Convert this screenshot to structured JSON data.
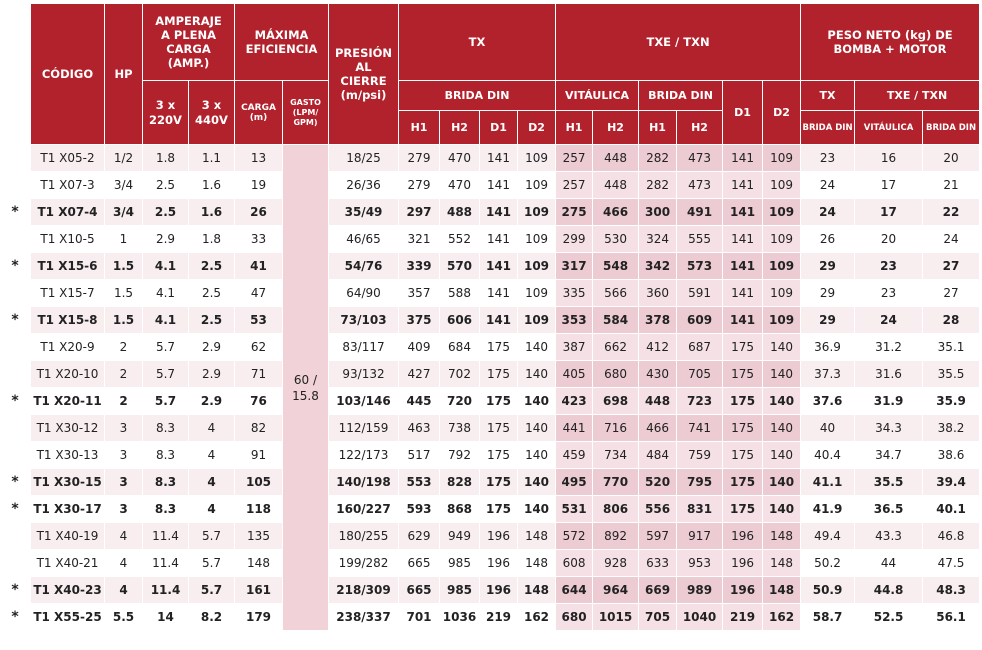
{
  "headers": {
    "codigo": "CÓDIGO",
    "hp": "HP",
    "amperaje": "AMPERAJE A PLENA CARGA (AMP.)",
    "amp_220": "3 x 220V",
    "amp_440": "3 x 440V",
    "maxima": "MÁXIMA EFICIENCIA",
    "carga": "CARGA (m)",
    "gasto": "GASTO (LPM/ GPM)",
    "presion": "PRESIÓN AL CIERRE (m/psi)",
    "tx": "TX",
    "tx_brida": "BRIDA DIN",
    "txe_txn": "TXE / TXN",
    "vitaulica": "VITÁULICA",
    "brida_din": "BRIDA DIN",
    "h1": "H1",
    "h2": "H2",
    "d1": "D1",
    "d2": "D2",
    "peso": "PESO NETO (kg) DE BOMBA + MOTOR",
    "peso_tx": "TX",
    "peso_txe": "TXE / TXN",
    "peso_brida_tx": "BRIDA DIN",
    "peso_vit": "VITÁULICA",
    "peso_brida_txe": "BRIDA DIN"
  },
  "gasto_merged": "60 / 15.8",
  "star_symbol": "*",
  "rows": [
    {
      "star": false,
      "codigo": "T1 X05-2",
      "hp": "1/2",
      "a220": "1.8",
      "a440": "1.1",
      "carga": "13",
      "presion": "18/25",
      "tx_h1": "279",
      "tx_h2": "470",
      "tx_d1": "141",
      "tx_d2": "109",
      "v_h1": "257",
      "v_h2": "448",
      "b_h1": "282",
      "b_h2": "473",
      "d1": "141",
      "d2": "109",
      "p_tx": "23",
      "p_vit": "16",
      "p_brida": "20"
    },
    {
      "star": false,
      "codigo": "T1 X07-3",
      "hp": "3/4",
      "a220": "2.5",
      "a440": "1.6",
      "carga": "19",
      "presion": "26/36",
      "tx_h1": "279",
      "tx_h2": "470",
      "tx_d1": "141",
      "tx_d2": "109",
      "v_h1": "257",
      "v_h2": "448",
      "b_h1": "282",
      "b_h2": "473",
      "d1": "141",
      "d2": "109",
      "p_tx": "24",
      "p_vit": "17",
      "p_brida": "21"
    },
    {
      "star": true,
      "codigo": "T1 X07-4",
      "hp": "3/4",
      "a220": "2.5",
      "a440": "1.6",
      "carga": "26",
      "presion": "35/49",
      "tx_h1": "297",
      "tx_h2": "488",
      "tx_d1": "141",
      "tx_d2": "109",
      "v_h1": "275",
      "v_h2": "466",
      "b_h1": "300",
      "b_h2": "491",
      "d1": "141",
      "d2": "109",
      "p_tx": "24",
      "p_vit": "17",
      "p_brida": "22"
    },
    {
      "star": false,
      "codigo": "T1 X10-5",
      "hp": "1",
      "a220": "2.9",
      "a440": "1.8",
      "carga": "33",
      "presion": "46/65",
      "tx_h1": "321",
      "tx_h2": "552",
      "tx_d1": "141",
      "tx_d2": "109",
      "v_h1": "299",
      "v_h2": "530",
      "b_h1": "324",
      "b_h2": "555",
      "d1": "141",
      "d2": "109",
      "p_tx": "26",
      "p_vit": "20",
      "p_brida": "24"
    },
    {
      "star": true,
      "codigo": "T1 X15-6",
      "hp": "1.5",
      "a220": "4.1",
      "a440": "2.5",
      "carga": "41",
      "presion": "54/76",
      "tx_h1": "339",
      "tx_h2": "570",
      "tx_d1": "141",
      "tx_d2": "109",
      "v_h1": "317",
      "v_h2": "548",
      "b_h1": "342",
      "b_h2": "573",
      "d1": "141",
      "d2": "109",
      "p_tx": "29",
      "p_vit": "23",
      "p_brida": "27"
    },
    {
      "star": false,
      "codigo": "T1 X15-7",
      "hp": "1.5",
      "a220": "4.1",
      "a440": "2.5",
      "carga": "47",
      "presion": "64/90",
      "tx_h1": "357",
      "tx_h2": "588",
      "tx_d1": "141",
      "tx_d2": "109",
      "v_h1": "335",
      "v_h2": "566",
      "b_h1": "360",
      "b_h2": "591",
      "d1": "141",
      "d2": "109",
      "p_tx": "29",
      "p_vit": "23",
      "p_brida": "27"
    },
    {
      "star": true,
      "codigo": "T1 X15-8",
      "hp": "1.5",
      "a220": "4.1",
      "a440": "2.5",
      "carga": "53",
      "presion": "73/103",
      "tx_h1": "375",
      "tx_h2": "606",
      "tx_d1": "141",
      "tx_d2": "109",
      "v_h1": "353",
      "v_h2": "584",
      "b_h1": "378",
      "b_h2": "609",
      "d1": "141",
      "d2": "109",
      "p_tx": "29",
      "p_vit": "24",
      "p_brida": "28"
    },
    {
      "star": false,
      "codigo": "T1 X20-9",
      "hp": "2",
      "a220": "5.7",
      "a440": "2.9",
      "carga": "62",
      "presion": "83/117",
      "tx_h1": "409",
      "tx_h2": "684",
      "tx_d1": "175",
      "tx_d2": "140",
      "v_h1": "387",
      "v_h2": "662",
      "b_h1": "412",
      "b_h2": "687",
      "d1": "175",
      "d2": "140",
      "p_tx": "36.9",
      "p_vit": "31.2",
      "p_brida": "35.1"
    },
    {
      "star": false,
      "codigo": "T1 X20-10",
      "hp": "2",
      "a220": "5.7",
      "a440": "2.9",
      "carga": "71",
      "presion": "93/132",
      "tx_h1": "427",
      "tx_h2": "702",
      "tx_d1": "175",
      "tx_d2": "140",
      "v_h1": "405",
      "v_h2": "680",
      "b_h1": "430",
      "b_h2": "705",
      "d1": "175",
      "d2": "140",
      "p_tx": "37.3",
      "p_vit": "31.6",
      "p_brida": "35.5"
    },
    {
      "star": true,
      "codigo": "T1 X20-11",
      "hp": "2",
      "a220": "5.7",
      "a440": "2.9",
      "carga": "76",
      "presion": "103/146",
      "tx_h1": "445",
      "tx_h2": "720",
      "tx_d1": "175",
      "tx_d2": "140",
      "v_h1": "423",
      "v_h2": "698",
      "b_h1": "448",
      "b_h2": "723",
      "d1": "175",
      "d2": "140",
      "p_tx": "37.6",
      "p_vit": "31.9",
      "p_brida": "35.9"
    },
    {
      "star": false,
      "codigo": "T1 X30-12",
      "hp": "3",
      "a220": "8.3",
      "a440": "4",
      "carga": "82",
      "presion": "112/159",
      "tx_h1": "463",
      "tx_h2": "738",
      "tx_d1": "175",
      "tx_d2": "140",
      "v_h1": "441",
      "v_h2": "716",
      "b_h1": "466",
      "b_h2": "741",
      "d1": "175",
      "d2": "140",
      "p_tx": "40",
      "p_vit": "34.3",
      "p_brida": "38.2"
    },
    {
      "star": false,
      "codigo": "T1 X30-13",
      "hp": "3",
      "a220": "8.3",
      "a440": "4",
      "carga": "91",
      "presion": "122/173",
      "tx_h1": "517",
      "tx_h2": "792",
      "tx_d1": "175",
      "tx_d2": "140",
      "v_h1": "459",
      "v_h2": "734",
      "b_h1": "484",
      "b_h2": "759",
      "d1": "175",
      "d2": "140",
      "p_tx": "40.4",
      "p_vit": "34.7",
      "p_brida": "38.6"
    },
    {
      "star": true,
      "codigo": "T1 X30-15",
      "hp": "3",
      "a220": "8.3",
      "a440": "4",
      "carga": "105",
      "presion": "140/198",
      "tx_h1": "553",
      "tx_h2": "828",
      "tx_d1": "175",
      "tx_d2": "140",
      "v_h1": "495",
      "v_h2": "770",
      "b_h1": "520",
      "b_h2": "795",
      "d1": "175",
      "d2": "140",
      "p_tx": "41.1",
      "p_vit": "35.5",
      "p_brida": "39.4"
    },
    {
      "star": true,
      "codigo": "T1 X30-17",
      "hp": "3",
      "a220": "8.3",
      "a440": "4",
      "carga": "118",
      "presion": "160/227",
      "tx_h1": "593",
      "tx_h2": "868",
      "tx_d1": "175",
      "tx_d2": "140",
      "v_h1": "531",
      "v_h2": "806",
      "b_h1": "556",
      "b_h2": "831",
      "d1": "175",
      "d2": "140",
      "p_tx": "41.9",
      "p_vit": "36.5",
      "p_brida": "40.1"
    },
    {
      "star": false,
      "codigo": "T1 X40-19",
      "hp": "4",
      "a220": "11.4",
      "a440": "5.7",
      "carga": "135",
      "presion": "180/255",
      "tx_h1": "629",
      "tx_h2": "949",
      "tx_d1": "196",
      "tx_d2": "148",
      "v_h1": "572",
      "v_h2": "892",
      "b_h1": "597",
      "b_h2": "917",
      "d1": "196",
      "d2": "148",
      "p_tx": "49.4",
      "p_vit": "43.3",
      "p_brida": "46.8"
    },
    {
      "star": false,
      "codigo": "T1 X40-21",
      "hp": "4",
      "a220": "11.4",
      "a440": "5.7",
      "carga": "148",
      "presion": "199/282",
      "tx_h1": "665",
      "tx_h2": "985",
      "tx_d1": "196",
      "tx_d2": "148",
      "v_h1": "608",
      "v_h2": "928",
      "b_h1": "633",
      "b_h2": "953",
      "d1": "196",
      "d2": "148",
      "p_tx": "50.2",
      "p_vit": "44",
      "p_brida": "47.5"
    },
    {
      "star": true,
      "codigo": "T1 X40-23",
      "hp": "4",
      "a220": "11.4",
      "a440": "5.7",
      "carga": "161",
      "presion": "218/309",
      "tx_h1": "665",
      "tx_h2": "985",
      "tx_d1": "196",
      "tx_d2": "148",
      "v_h1": "644",
      "v_h2": "964",
      "b_h1": "669",
      "b_h2": "989",
      "d1": "196",
      "d2": "148",
      "p_tx": "50.9",
      "p_vit": "44.8",
      "p_brida": "48.3"
    },
    {
      "star": true,
      "codigo": "T1 X55-25",
      "hp": "5.5",
      "a220": "14",
      "a440": "8.2",
      "carga": "179",
      "presion": "238/337",
      "tx_h1": "701",
      "tx_h2": "1036",
      "tx_d1": "219",
      "tx_d2": "162",
      "v_h1": "680",
      "v_h2": "1015",
      "b_h1": "705",
      "b_h2": "1040",
      "d1": "219",
      "d2": "162",
      "p_tx": "58.7",
      "p_vit": "52.5",
      "p_brida": "56.1"
    }
  ]
}
